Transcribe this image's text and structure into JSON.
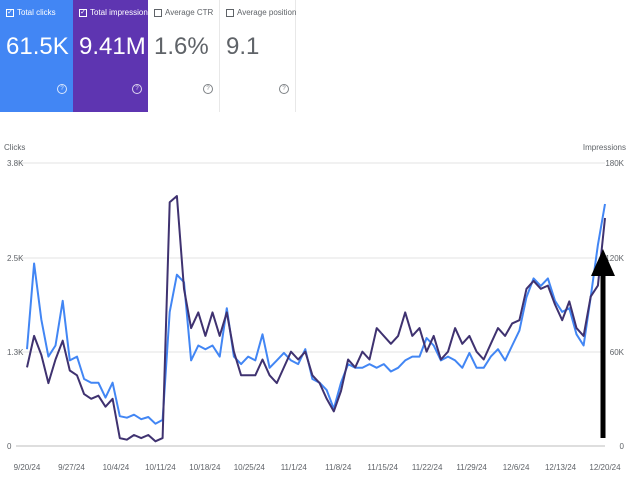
{
  "cards": [
    {
      "label": "Total clicks",
      "value": "61.5K",
      "checked": true,
      "bg": "#4286f4"
    },
    {
      "label": "Total impressions",
      "value": "9.41M",
      "checked": true,
      "bg": "#5e35b1"
    },
    {
      "label": "Average CTR",
      "value": "1.6%",
      "checked": false
    },
    {
      "label": "Average position",
      "value": "9.1",
      "checked": false
    }
  ],
  "chart_data": {
    "type": "line",
    "left_axis_title": "Clicks",
    "right_axis_title": "Impressions",
    "left_ticks": [
      "3.8K",
      "2.5K",
      "1.3K",
      "0"
    ],
    "right_ticks": [
      "180K",
      "120K",
      "60K",
      "0"
    ],
    "left_ylim": [
      0,
      3800
    ],
    "right_ylim": [
      0,
      180000
    ],
    "x_labels": [
      "9/20/24",
      "9/27/24",
      "10/4/24",
      "10/11/24",
      "10/18/24",
      "10/25/24",
      "11/1/24",
      "11/8/24",
      "11/15/24",
      "11/22/24",
      "11/29/24",
      "12/6/24",
      "12/13/24",
      "12/20/24"
    ],
    "x_start": "9/20/24",
    "series": [
      {
        "color": "#4286f4",
        "axis": "left",
        "values": [
          1300,
          2450,
          1700,
          1200,
          1350,
          1950,
          1150,
          1200,
          900,
          850,
          850,
          650,
          850,
          400,
          380,
          420,
          360,
          390,
          300,
          350,
          1800,
          2300,
          2200,
          1150,
          1350,
          1300,
          1350,
          1200,
          1850,
          1200,
          1100,
          1200,
          1150,
          1500,
          1050,
          1150,
          1250,
          1150,
          1100,
          1300,
          900,
          850,
          750,
          500,
          850,
          1100,
          1050,
          1050,
          1100,
          1050,
          1100,
          1000,
          1050,
          1150,
          1200,
          1200,
          1450,
          1350,
          1150,
          1200,
          1150,
          1050,
          1250,
          1050,
          1050,
          1200,
          1300,
          1150,
          1350,
          1550,
          2000,
          2250,
          2150,
          2250,
          1950,
          1800,
          1850,
          1500,
          1350,
          2000,
          2700,
          3250
        ]
      },
      {
        "color": "#3f3270",
        "axis": "right",
        "values": [
          50000,
          70000,
          58000,
          40000,
          55000,
          67000,
          48000,
          45000,
          33000,
          30000,
          32000,
          25000,
          30000,
          5000,
          4000,
          7000,
          5000,
          7000,
          3000,
          5000,
          155000,
          159000,
          100000,
          75000,
          85000,
          70000,
          85000,
          70000,
          85000,
          60000,
          45000,
          45000,
          45000,
          55000,
          45000,
          40000,
          50000,
          60000,
          55000,
          60000,
          45000,
          40000,
          30000,
          22000,
          35000,
          55000,
          50000,
          60000,
          55000,
          75000,
          70000,
          65000,
          70000,
          85000,
          70000,
          75000,
          60000,
          70000,
          55000,
          60000,
          75000,
          65000,
          70000,
          60000,
          55000,
          65000,
          75000,
          70000,
          78000,
          80000,
          100000,
          105000,
          100000,
          102000,
          90000,
          80000,
          92000,
          75000,
          70000,
          95000,
          102000,
          145000
        ]
      }
    ],
    "grid": true
  }
}
